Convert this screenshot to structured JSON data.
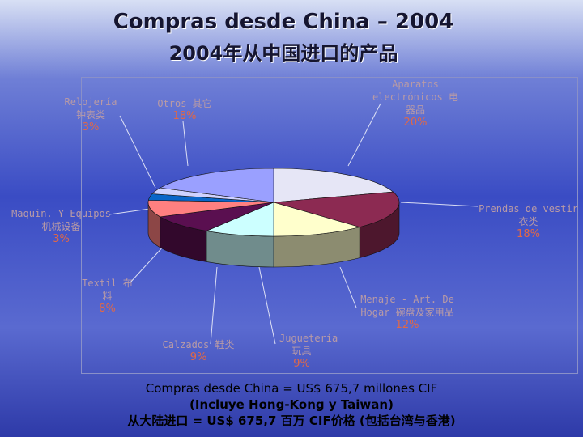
{
  "chart_data": {
    "type": "pie",
    "title": "Compras desde China – 2004",
    "subtitle": "2004年从中国进口的产品",
    "categories": [
      "Aparatos electrónicos",
      "Prendas de vestir",
      "Menaje - Art. De Hogar",
      "Juguetería",
      "Calzados",
      "Textil",
      "Maquin. Y Equipos",
      "Relojería",
      "Otros"
    ],
    "categories_zh": [
      "电器品",
      "衣类",
      "碗盘及家用品",
      "玩具",
      "鞋类",
      "布料",
      "机械设备",
      "钟表类",
      "其它"
    ],
    "values": [
      20,
      18,
      12,
      9,
      9,
      8,
      3,
      3,
      18
    ],
    "value_labels": [
      "20%",
      "18%",
      "12%",
      "9%",
      "9%",
      "8%",
      "3%",
      "3%",
      "18%"
    ],
    "colors": [
      "#e6e6f6",
      "#8c2a52",
      "#ffffcc",
      "#ccffff",
      "#5a0f50",
      "#ff8080",
      "#0a66c8",
      "#cfd2ff",
      "#9aa0ff"
    ],
    "notes": [
      "Compras desde China = US$ 675,7 millones CIF",
      "(Incluye Hong-Kong y Taiwan)",
      "从大陆进口 = US$ 675,7 百万 CIF价格 (包括台湾与香港)"
    ]
  }
}
